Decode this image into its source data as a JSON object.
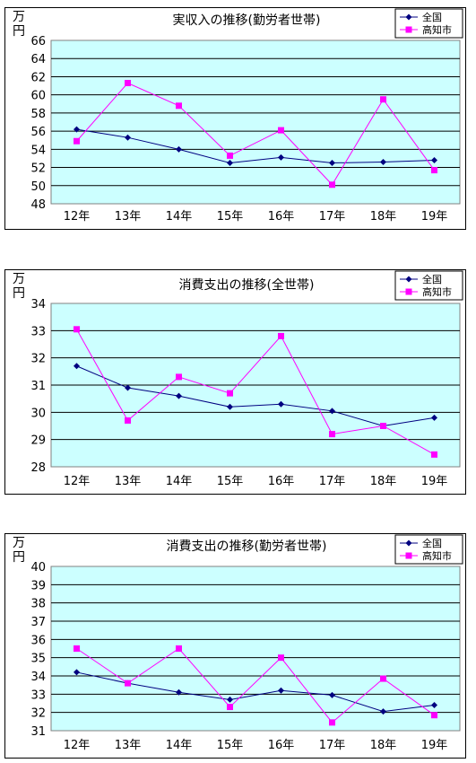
{
  "chart_data": [
    {
      "type": "line",
      "title": "実収入の推移(勤労者世帯)",
      "ylabel": "万円",
      "categories": [
        "12年",
        "13年",
        "14年",
        "15年",
        "16年",
        "17年",
        "18年",
        "19年"
      ],
      "ylim": [
        48,
        66
      ],
      "ystep": 2,
      "series": [
        {
          "name": "全国",
          "color": "#000080",
          "marker": "diamond",
          "values": [
            56.2,
            55.3,
            54.0,
            52.5,
            53.1,
            52.5,
            52.6,
            52.8
          ]
        },
        {
          "name": "高知市",
          "color": "#ff00ff",
          "marker": "square",
          "values": [
            54.9,
            61.3,
            58.8,
            53.3,
            56.1,
            50.1,
            59.5,
            51.7
          ]
        }
      ],
      "grid": true,
      "legend": "top-right"
    },
    {
      "type": "line",
      "title": "消費支出の推移(全世帯)",
      "ylabel": "万円",
      "categories": [
        "12年",
        "13年",
        "14年",
        "15年",
        "16年",
        "17年",
        "18年",
        "19年"
      ],
      "ylim": [
        28,
        34
      ],
      "ystep": 1,
      "series": [
        {
          "name": "全国",
          "color": "#000080",
          "marker": "diamond",
          "values": [
            31.7,
            30.9,
            30.6,
            30.2,
            30.3,
            30.05,
            29.5,
            29.8
          ]
        },
        {
          "name": "高知市",
          "color": "#ff00ff",
          "marker": "square",
          "values": [
            33.05,
            29.7,
            31.3,
            30.7,
            32.8,
            29.2,
            29.5,
            28.45
          ]
        }
      ],
      "grid": true,
      "legend": "top-right"
    },
    {
      "type": "line",
      "title": "消費支出の推移(勤労者世帯)",
      "ylabel": "万円",
      "categories": [
        "12年",
        "13年",
        "14年",
        "15年",
        "16年",
        "17年",
        "18年",
        "19年"
      ],
      "ylim": [
        31,
        40
      ],
      "ystep": 1,
      "series": [
        {
          "name": "全国",
          "color": "#000080",
          "marker": "diamond",
          "values": [
            34.2,
            33.6,
            33.1,
            32.7,
            33.2,
            32.95,
            32.05,
            32.4
          ]
        },
        {
          "name": "高知市",
          "color": "#ff00ff",
          "marker": "square",
          "values": [
            35.5,
            33.6,
            35.5,
            32.3,
            35.0,
            31.45,
            33.85,
            31.85
          ]
        }
      ],
      "grid": true,
      "legend": "top-right"
    }
  ]
}
